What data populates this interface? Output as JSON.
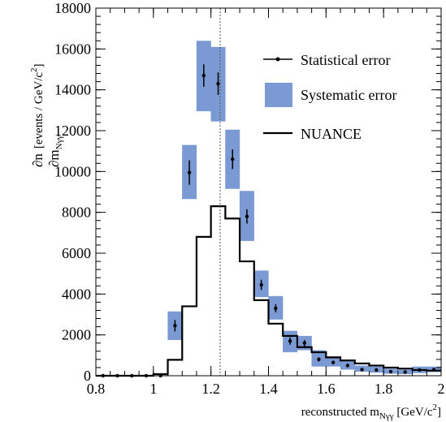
{
  "chart_data": {
    "type": "histogram",
    "xlabel": "reconstructed m_{Nγγ} [GeV/c²]",
    "ylabel": "∂n/∂m_{Nγγ} [events / GeV/c²]",
    "xlim": [
      0.8,
      2.0
    ],
    "ylim": [
      0,
      18000
    ],
    "x_ticks": [
      "0.8",
      "1",
      "1.2",
      "1.4",
      "1.6",
      "1.8",
      "2"
    ],
    "y_ticks": [
      "0",
      "2000",
      "4000",
      "6000",
      "8000",
      "10000",
      "12000",
      "14000",
      "16000",
      "18000"
    ],
    "reference_line_x": 1.232,
    "legend": {
      "placement": "top-right",
      "entries": [
        "Statistical error",
        "Systematic error",
        "NUANCE"
      ]
    },
    "colors": {
      "systematic_band": "#7b9ad4",
      "points": "#000000",
      "nuance": "#000000",
      "reference_line": "#555555"
    },
    "series": [
      {
        "name": "Statistical error",
        "x": [
          0.825,
          0.875,
          0.925,
          0.975,
          1.025,
          1.075,
          1.125,
          1.175,
          1.225,
          1.275,
          1.325,
          1.375,
          1.425,
          1.475,
          1.525,
          1.575,
          1.625,
          1.675,
          1.725,
          1.775,
          1.825,
          1.875,
          1.925,
          1.975
        ],
        "y": [
          0,
          0,
          0,
          0,
          0,
          2450,
          9950,
          14700,
          14300,
          10600,
          7800,
          4450,
          3300,
          1700,
          1600,
          800,
          650,
          500,
          300,
          280,
          200,
          180,
          280,
          300
        ],
        "stat_err": [
          30,
          30,
          30,
          30,
          30,
          280,
          600,
          550,
          550,
          480,
          350,
          250,
          200,
          180,
          150,
          100,
          90,
          80,
          70,
          60,
          50,
          50,
          50,
          50
        ]
      },
      {
        "name": "Systematic error",
        "x": [
          1.075,
          1.125,
          1.175,
          1.225,
          1.275,
          1.325,
          1.375,
          1.425,
          1.475,
          1.525,
          1.575,
          1.625,
          1.675,
          1.725,
          1.775,
          1.825,
          1.875,
          1.925,
          1.975
        ],
        "low": [
          1750,
          8650,
          12950,
          12450,
          9150,
          6600,
          3850,
          2750,
          1150,
          1250,
          450,
          450,
          300,
          200,
          150,
          100,
          80,
          130,
          180
        ],
        "high": [
          3150,
          11300,
          16400,
          16100,
          12050,
          9050,
          5150,
          3900,
          2200,
          1950,
          1250,
          950,
          750,
          500,
          450,
          350,
          300,
          450,
          450
        ]
      },
      {
        "name": "NUANCE",
        "x_edges": [
          0.8,
          0.85,
          0.9,
          0.95,
          1.0,
          1.05,
          1.1,
          1.15,
          1.2,
          1.25,
          1.3,
          1.35,
          1.4,
          1.45,
          1.5,
          1.55,
          1.6,
          1.65,
          1.7,
          1.75,
          1.8,
          1.85,
          1.9,
          1.95,
          2.0
        ],
        "values": [
          0,
          0,
          0,
          0,
          80,
          780,
          3400,
          6800,
          8300,
          7700,
          5600,
          3700,
          2550,
          1950,
          1400,
          1150,
          900,
          750,
          600,
          500,
          400,
          350,
          280,
          250
        ]
      }
    ]
  }
}
